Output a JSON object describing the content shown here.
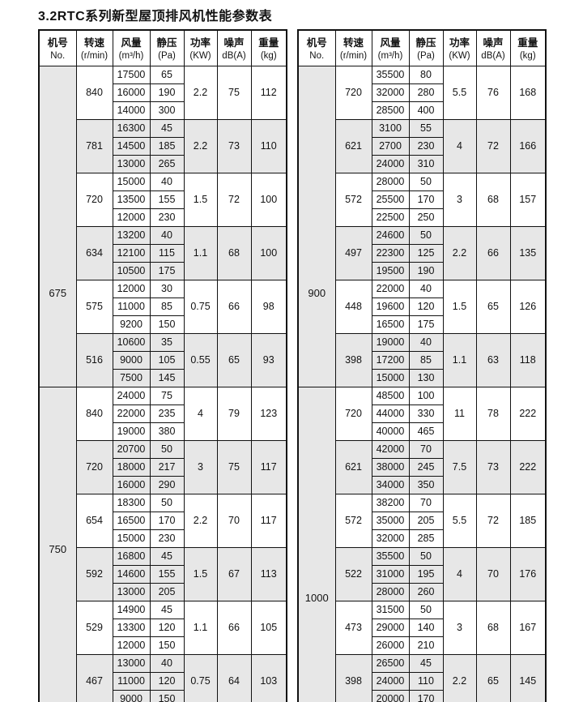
{
  "title": "3.2RTC系列新型屋顶排风机性能参数表",
  "columns": [
    {
      "key": "no",
      "name": "机号",
      "unit": "No."
    },
    {
      "key": "speed",
      "name": "转速",
      "unit": "(r/min)"
    },
    {
      "key": "airflow",
      "name": "风量",
      "unit": "(m³/h)"
    },
    {
      "key": "pressure",
      "name": "静压",
      "unit": "(Pa)"
    },
    {
      "key": "power",
      "name": "功率",
      "unit": "(KW)"
    },
    {
      "key": "noise",
      "name": "噪声",
      "unit": "dB(A)"
    },
    {
      "key": "weight",
      "name": "重量",
      "unit": "(kg)"
    }
  ],
  "tables": [
    {
      "sections": [
        {
          "machine": "675",
          "groups": [
            {
              "speed": "840",
              "rows": [
                [
                  "17500",
                  "65"
                ],
                [
                  "16000",
                  "190"
                ],
                [
                  "14000",
                  "300"
                ]
              ],
              "power": "2.2",
              "noise": "75",
              "weight": "112"
            },
            {
              "speed": "781",
              "rows": [
                [
                  "16300",
                  "45"
                ],
                [
                  "14500",
                  "185"
                ],
                [
                  "13000",
                  "265"
                ]
              ],
              "power": "2.2",
              "noise": "73",
              "weight": "110"
            },
            {
              "speed": "720",
              "rows": [
                [
                  "15000",
                  "40"
                ],
                [
                  "13500",
                  "155"
                ],
                [
                  "12000",
                  "230"
                ]
              ],
              "power": "1.5",
              "noise": "72",
              "weight": "100"
            },
            {
              "speed": "634",
              "rows": [
                [
                  "13200",
                  "40"
                ],
                [
                  "12100",
                  "115"
                ],
                [
                  "10500",
                  "175"
                ]
              ],
              "power": "1.1",
              "noise": "68",
              "weight": "100"
            },
            {
              "speed": "575",
              "rows": [
                [
                  "12000",
                  "30"
                ],
                [
                  "11000",
                  "85"
                ],
                [
                  "9200",
                  "150"
                ]
              ],
              "power": "0.75",
              "noise": "66",
              "weight": "98"
            },
            {
              "speed": "516",
              "rows": [
                [
                  "10600",
                  "35"
                ],
                [
                  "9000",
                  "105"
                ],
                [
                  "7500",
                  "145"
                ]
              ],
              "power": "0.55",
              "noise": "65",
              "weight": "93"
            }
          ]
        },
        {
          "machine": "750",
          "groups": [
            {
              "speed": "840",
              "rows": [
                [
                  "24000",
                  "75"
                ],
                [
                  "22000",
                  "235"
                ],
                [
                  "19000",
                  "380"
                ]
              ],
              "power": "4",
              "noise": "79",
              "weight": "123"
            },
            {
              "speed": "720",
              "rows": [
                [
                  "20700",
                  "50"
                ],
                [
                  "18000",
                  "217"
                ],
                [
                  "16000",
                  "290"
                ]
              ],
              "power": "3",
              "noise": "75",
              "weight": "117"
            },
            {
              "speed": "654",
              "rows": [
                [
                  "18300",
                  "50"
                ],
                [
                  "16500",
                  "170"
                ],
                [
                  "15000",
                  "230"
                ]
              ],
              "power": "2.2",
              "noise": "70",
              "weight": "117"
            },
            {
              "speed": "592",
              "rows": [
                [
                  "16800",
                  "45"
                ],
                [
                  "14600",
                  "155"
                ],
                [
                  "13000",
                  "205"
                ]
              ],
              "power": "1.5",
              "noise": "67",
              "weight": "113"
            },
            {
              "speed": "529",
              "rows": [
                [
                  "14900",
                  "45"
                ],
                [
                  "13300",
                  "120"
                ],
                [
                  "12000",
                  "150"
                ]
              ],
              "power": "1.1",
              "noise": "66",
              "weight": "105"
            },
            {
              "speed": "467",
              "rows": [
                [
                  "13000",
                  "40"
                ],
                [
                  "11000",
                  "120"
                ],
                [
                  "9000",
                  "150"
                ]
              ],
              "power": "0.75",
              "noise": "64",
              "weight": "103"
            }
          ]
        }
      ]
    },
    {
      "sections": [
        {
          "machine": "900",
          "groups": [
            {
              "speed": "720",
              "rows": [
                [
                  "35500",
                  "80"
                ],
                [
                  "32000",
                  "280"
                ],
                [
                  "28500",
                  "400"
                ]
              ],
              "power": "5.5",
              "noise": "76",
              "weight": "168"
            },
            {
              "speed": "621",
              "rows": [
                [
                  "3100",
                  "55"
                ],
                [
                  "2700",
                  "230"
                ],
                [
                  "24000",
                  "310"
                ]
              ],
              "power": "4",
              "noise": "72",
              "weight": "166"
            },
            {
              "speed": "572",
              "rows": [
                [
                  "28000",
                  "50"
                ],
                [
                  "25500",
                  "170"
                ],
                [
                  "22500",
                  "250"
                ]
              ],
              "power": "3",
              "noise": "68",
              "weight": "157"
            },
            {
              "speed": "497",
              "rows": [
                [
                  "24600",
                  "50"
                ],
                [
                  "22300",
                  "125"
                ],
                [
                  "19500",
                  "190"
                ]
              ],
              "power": "2.2",
              "noise": "66",
              "weight": "135"
            },
            {
              "speed": "448",
              "rows": [
                [
                  "22000",
                  "40"
                ],
                [
                  "19600",
                  "120"
                ],
                [
                  "16500",
                  "175"
                ]
              ],
              "power": "1.5",
              "noise": "65",
              "weight": "126"
            },
            {
              "speed": "398",
              "rows": [
                [
                  "19000",
                  "40"
                ],
                [
                  "17200",
                  "85"
                ],
                [
                  "15000",
                  "130"
                ]
              ],
              "power": "1.1",
              "noise": "63",
              "weight": "118"
            }
          ]
        },
        {
          "machine": "1000",
          "groups": [
            {
              "speed": "720",
              "rows": [
                [
                  "48500",
                  "100"
                ],
                [
                  "44000",
                  "330"
                ],
                [
                  "40000",
                  "465"
                ]
              ],
              "power": "11",
              "noise": "78",
              "weight": "222"
            },
            {
              "speed": "621",
              "rows": [
                [
                  "42000",
                  "70"
                ],
                [
                  "38000",
                  "245"
                ],
                [
                  "34000",
                  "350"
                ]
              ],
              "power": "7.5",
              "noise": "73",
              "weight": "222"
            },
            {
              "speed": "572",
              "rows": [
                [
                  "38200",
                  "70"
                ],
                [
                  "35000",
                  "205"
                ],
                [
                  "32000",
                  "285"
                ]
              ],
              "power": "5.5",
              "noise": "72",
              "weight": "185"
            },
            {
              "speed": "522",
              "rows": [
                [
                  "35500",
                  "50"
                ],
                [
                  "31000",
                  "195"
                ],
                [
                  "28000",
                  "260"
                ]
              ],
              "power": "4",
              "noise": "70",
              "weight": "176"
            },
            {
              "speed": "473",
              "rows": [
                [
                  "31500",
                  "50"
                ],
                [
                  "29000",
                  "140"
                ],
                [
                  "26000",
                  "210"
                ]
              ],
              "power": "3",
              "noise": "68",
              "weight": "167"
            },
            {
              "speed": "398",
              "rows": [
                [
                  "26500",
                  "45"
                ],
                [
                  "24000",
                  "110"
                ],
                [
                  "20000",
                  "170"
                ]
              ],
              "power": "2.2",
              "noise": "65",
              "weight": "145"
            }
          ]
        }
      ]
    }
  ]
}
